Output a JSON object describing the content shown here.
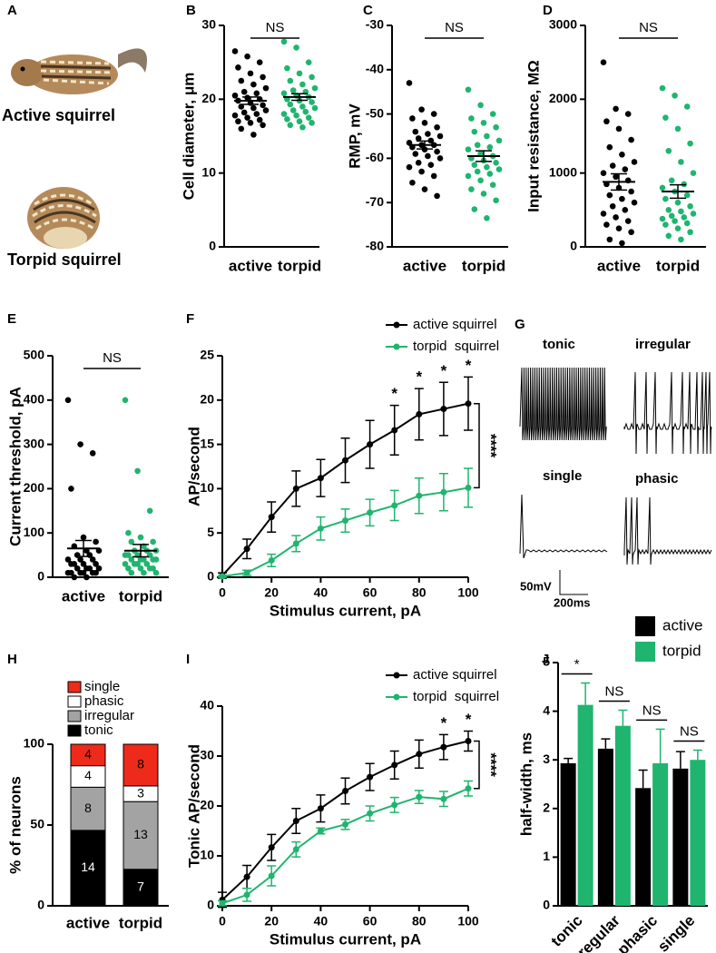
{
  "panel_a": {
    "panel": "A",
    "labels": [
      "Active squirrel",
      "Torpid squirrel"
    ]
  },
  "panel_g": {
    "panel": "G",
    "labels": [
      "tonic",
      "irregular",
      "single",
      "phasic"
    ],
    "scale_labels": [
      "50mV",
      "200ms"
    ]
  },
  "chart_data": [
    {
      "type": "dotplot",
      "panel": "B",
      "ylabel": "Cell diameter, μm",
      "categories": [
        "active",
        "torpid"
      ],
      "colors": [
        "#000000",
        "#1fb56f"
      ],
      "values": [
        [
          26.5,
          25.8,
          25,
          24.3,
          23.5,
          23,
          22.5,
          22,
          21.5,
          21,
          20.8,
          20.5,
          20.2,
          20,
          19.8,
          19.5,
          19.2,
          19,
          18.8,
          18.5,
          18.2,
          18,
          17.8,
          17.5,
          17.2,
          17,
          16.8,
          16.5,
          16,
          15.2
        ],
        [
          27.8,
          27,
          25,
          24.2,
          23.5,
          23,
          22.5,
          22,
          21.5,
          21.2,
          21,
          20.8,
          20.5,
          20.3,
          20,
          19.8,
          19.6,
          19.3,
          19,
          18.8,
          18.5,
          18.3,
          18,
          17.8,
          17.5,
          17.3,
          17,
          16.8,
          16.5,
          16.2
        ]
      ],
      "mean": [
        19.8,
        20.3
      ],
      "sem": [
        0.5,
        0.45
      ],
      "significance": "NS",
      "ylim": [
        0,
        30
      ],
      "yticks": [
        0,
        10,
        20,
        30
      ]
    },
    {
      "type": "dotplot",
      "panel": "C",
      "ylabel": "RMP, mV",
      "categories": [
        "active",
        "torpid"
      ],
      "colors": [
        "#000000",
        "#1fb56f"
      ],
      "values": [
        [
          -43,
          -49,
          -50,
          -51,
          -52,
          -53,
          -54,
          -54.5,
          -55,
          -55.5,
          -56,
          -56.5,
          -57,
          -57,
          -57.5,
          -58,
          -58.5,
          -59,
          -59.5,
          -60,
          -61,
          -61.5,
          -62,
          -63,
          -64,
          -65.5,
          -67,
          -68.5
        ],
        [
          -44.5,
          -48,
          -50,
          -51,
          -52,
          -53,
          -54,
          -55,
          -56,
          -57,
          -57.5,
          -58,
          -59,
          -59.5,
          -60,
          -60.5,
          -61,
          -61.5,
          -62,
          -62.5,
          -63,
          -63.5,
          -64,
          -65,
          -66,
          -67,
          -68,
          -69.5,
          -71.5,
          -73.5
        ]
      ],
      "mean": [
        -57,
        -59.5
      ],
      "sem": [
        0.9,
        1.2
      ],
      "significance": "NS",
      "ylim": [
        -80,
        -30
      ],
      "yticks": [
        -80,
        -70,
        -60,
        -50,
        -40,
        -30
      ]
    },
    {
      "type": "dotplot",
      "panel": "D",
      "ylabel": "Input resistance, MΩ",
      "categories": [
        "active",
        "torpid"
      ],
      "colors": [
        "#000000",
        "#1fb56f"
      ],
      "values": [
        [
          2500,
          1870,
          1800,
          1700,
          1600,
          1450,
          1350,
          1250,
          1150,
          1100,
          1050,
          1000,
          950,
          900,
          850,
          800,
          750,
          700,
          650,
          600,
          550,
          500,
          450,
          400,
          350,
          300,
          250,
          200,
          100,
          50
        ],
        [
          2150,
          2050,
          1900,
          1750,
          1600,
          1400,
          1300,
          1150,
          1000,
          900,
          850,
          800,
          750,
          700,
          650,
          600,
          550,
          500,
          480,
          450,
          420,
          400,
          380,
          350,
          320,
          300,
          250,
          200,
          150,
          100
        ]
      ],
      "mean": [
        880,
        750
      ],
      "sem": [
        110,
        90
      ],
      "significance": "NS",
      "ylim": [
        0,
        3000
      ],
      "yticks": [
        0,
        1000,
        2000,
        3000
      ]
    },
    {
      "type": "dotplot",
      "panel": "E",
      "ylabel": "Current threshold, pA",
      "categories": [
        "active",
        "torpid"
      ],
      "colors": [
        "#000000",
        "#1fb56f"
      ],
      "values": [
        [
          400,
          300,
          280,
          200,
          90,
          80,
          70,
          60,
          60,
          50,
          50,
          40,
          40,
          40,
          30,
          30,
          30,
          30,
          20,
          20,
          20,
          20,
          10,
          10,
          10,
          10,
          10,
          10,
          0,
          0
        ],
        [
          400,
          240,
          150,
          100,
          90,
          80,
          80,
          70,
          60,
          60,
          60,
          50,
          50,
          50,
          50,
          40,
          40,
          40,
          40,
          40,
          30,
          30,
          30,
          30,
          20,
          20,
          20,
          20,
          10,
          10,
          10
        ]
      ],
      "mean": [
        65,
        60
      ],
      "sem": [
        18,
        14
      ],
      "significance": "NS",
      "ylim": [
        0,
        500
      ],
      "yticks": [
        0,
        100,
        200,
        300,
        400,
        500
      ]
    },
    {
      "type": "line",
      "panel": "F",
      "xlabel": "Stimulus current, pA",
      "ylabel": "AP/second",
      "x": [
        0,
        10,
        20,
        30,
        40,
        50,
        60,
        70,
        80,
        90,
        100
      ],
      "series": [
        {
          "name": "active squirrel",
          "color": "#000000",
          "values": [
            0.2,
            3.2,
            6.8,
            10,
            11.2,
            13.2,
            15,
            16.6,
            18.4,
            19,
            19.6
          ],
          "errors": [
            0.3,
            1.1,
            1.7,
            2,
            2.1,
            2.5,
            2.7,
            2.8,
            2.9,
            3,
            3
          ]
        },
        {
          "name": "torpid  squirrel",
          "color": "#1fb56f",
          "values": [
            0.1,
            0.5,
            1.9,
            3.8,
            5.5,
            6.4,
            7.3,
            8.1,
            9.2,
            9.6,
            10.1
          ],
          "errors": [
            0.1,
            0.3,
            0.7,
            0.9,
            1.3,
            1.3,
            1.5,
            1.7,
            2,
            2.1,
            2.2
          ]
        }
      ],
      "star_x": [
        70,
        80,
        90,
        100
      ],
      "star_label": "*",
      "bracket_label": "****",
      "xlim": [
        0,
        100
      ],
      "xticks": [
        0,
        20,
        40,
        60,
        80,
        100
      ],
      "ylim": [
        0,
        25
      ],
      "yticks": [
        0,
        5,
        10,
        15,
        20,
        25
      ]
    },
    {
      "type": "stacked_bar",
      "panel": "H",
      "ylabel": "% of neurons",
      "categories": [
        "active",
        "torpid"
      ],
      "series": [
        {
          "name": "tonic",
          "color": "#000000",
          "values": [
            46.7,
            22.6
          ],
          "counts": [
            14,
            7
          ]
        },
        {
          "name": "irregular",
          "color": "#a3a3a3",
          "values": [
            26.7,
            41.9
          ],
          "counts": [
            8,
            13
          ]
        },
        {
          "name": "phasic",
          "color": "#ffffff",
          "values": [
            13.3,
            9.7
          ],
          "counts": [
            4,
            3
          ]
        },
        {
          "name": "single",
          "color": "#ee2a1b",
          "values": [
            13.3,
            25.8
          ],
          "counts": [
            4,
            8
          ]
        }
      ],
      "ylim": [
        0,
        100
      ],
      "yticks": [
        0,
        50,
        100
      ]
    },
    {
      "type": "line",
      "panel": "I",
      "xlabel": "Stimulus current, pA",
      "ylabel": "Tonic  AP/second",
      "x": [
        0,
        10,
        20,
        30,
        40,
        50,
        60,
        70,
        80,
        90,
        100
      ],
      "series": [
        {
          "name": "active squirrel",
          "color": "#000000",
          "values": [
            1.2,
            5.8,
            11.7,
            17,
            19.5,
            23,
            25.8,
            28.2,
            30.4,
            31.8,
            33
          ],
          "errors": [
            1.5,
            2.3,
            2.6,
            2.5,
            2.7,
            2.6,
            2.7,
            2.8,
            2.8,
            2.5,
            2
          ]
        },
        {
          "name": "torpid  squirrel",
          "color": "#1fb56f",
          "values": [
            0.5,
            2.2,
            6,
            11.3,
            15,
            16.3,
            18.5,
            20.2,
            21.8,
            21.4,
            23.5
          ],
          "errors": [
            0.5,
            1.3,
            2,
            1.5,
            0.6,
            1,
            1.5,
            1.5,
            1.3,
            1.5,
            1.5
          ]
        }
      ],
      "star_x": [
        90,
        100
      ],
      "star_label": "*",
      "bracket_label": "****",
      "xlim": [
        0,
        100
      ],
      "xticks": [
        0,
        20,
        40,
        60,
        80,
        100
      ],
      "ylim": [
        0,
        40
      ],
      "yticks": [
        0,
        10,
        20,
        30,
        40
      ]
    },
    {
      "type": "bar",
      "panel": "J",
      "ylabel": "half-width, ms",
      "categories": [
        "tonic",
        "irregular",
        "phasic",
        "single"
      ],
      "series": [
        {
          "name": "active",
          "color": "#000000",
          "values": [
            2.93,
            3.23,
            2.42,
            2.82
          ],
          "errors": [
            0.1,
            0.2,
            0.37,
            0.35
          ]
        },
        {
          "name": "torpid",
          "color": "#1fb56f",
          "values": [
            4.13,
            3.7,
            2.93,
            3.0
          ],
          "errors": [
            0.45,
            0.32,
            0.7,
            0.2
          ]
        }
      ],
      "annotations": [
        "*",
        "NS",
        "NS",
        "NS"
      ],
      "ylim": [
        0,
        5
      ],
      "yticks": [
        0,
        1,
        2,
        3,
        4,
        5
      ]
    }
  ]
}
